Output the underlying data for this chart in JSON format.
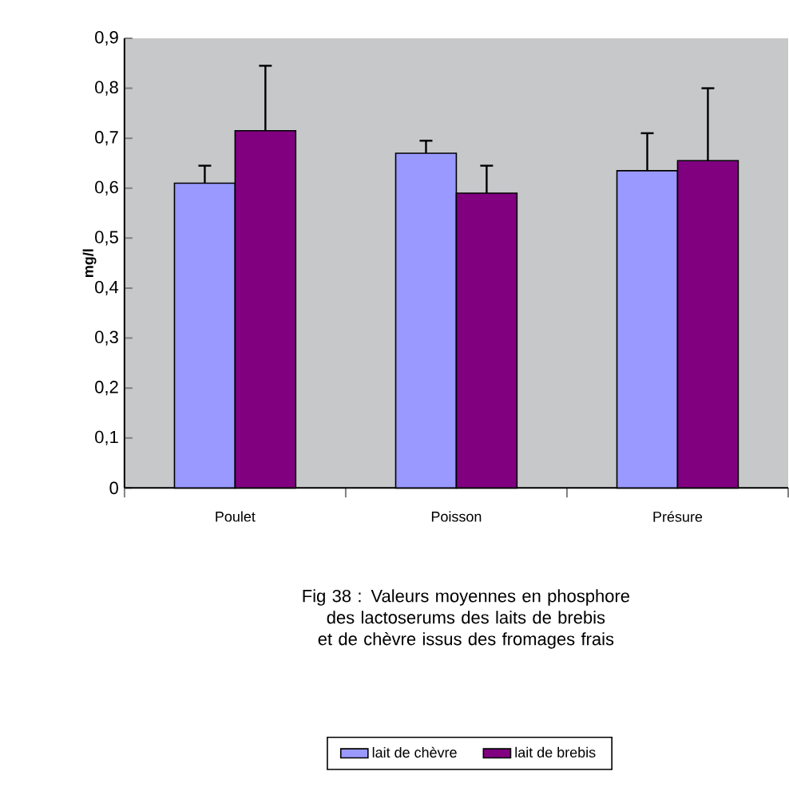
{
  "chart_data": {
    "type": "bar",
    "categories": [
      "Poulet",
      "Poisson",
      "Présure"
    ],
    "ylabel": "mg/l",
    "series": [
      {
        "name": "lait de chèvre",
        "color": "#9999ff",
        "values": [
          0.61,
          0.67,
          0.635
        ],
        "errors": [
          [
            0.61,
            0.645
          ],
          [
            0.67,
            0.695
          ],
          [
            0.635,
            0.71
          ]
        ]
      },
      {
        "name": "lait de brebis",
        "color": "#800080",
        "values": [
          0.715,
          0.59,
          0.655
        ],
        "errors": [
          [
            0.715,
            0.845
          ],
          [
            0.59,
            0.645
          ],
          [
            0.655,
            0.8
          ]
        ]
      }
    ],
    "ylim": [
      0,
      0.9
    ],
    "yticks": [
      0,
      {
        "value": 0.1,
        "label": "0,1"
      },
      {
        "value": 0.2,
        "label": "0,2"
      },
      {
        "value": 0.3,
        "label": "0,3"
      },
      {
        "value": 0.4,
        "label": "0,4"
      },
      {
        "value": 0.5,
        "label": "0,5"
      },
      {
        "value": 0.6,
        "label": "0,6"
      },
      {
        "value": 0.7,
        "label": "0,7"
      },
      {
        "value": 0.8,
        "label": "0,8"
      },
      {
        "value": 0.9,
        "label": "0,9"
      }
    ],
    "legend": "bottom",
    "annotations": [
      "Fig 38 : Valeurs moyennes en phosphore des lactoserums des laits de brebis et de chèvre issus des fromages frais"
    ]
  }
}
